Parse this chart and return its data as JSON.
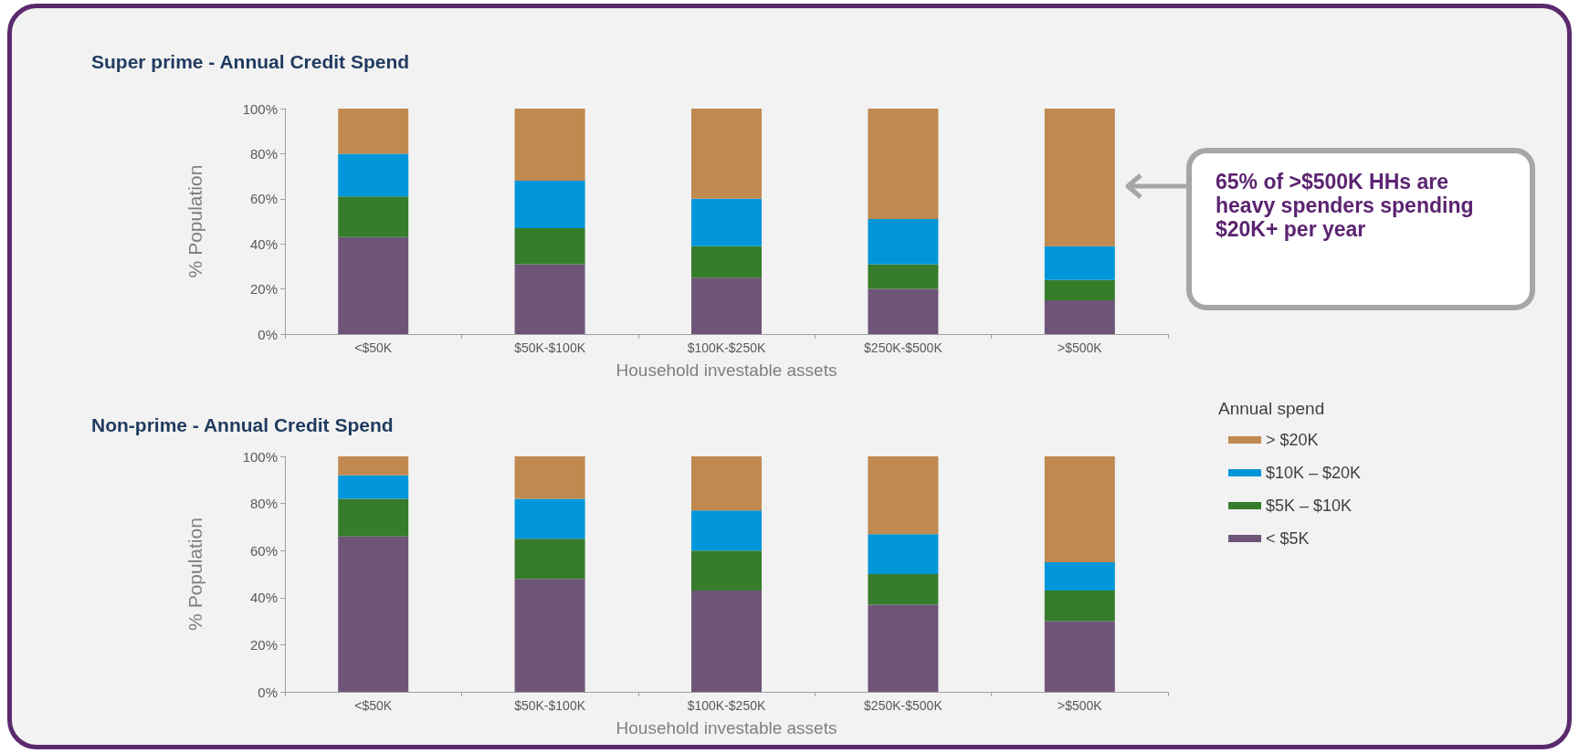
{
  "chart_data": [
    {
      "type": "bar",
      "title": "Super prime - Annual Credit Spend",
      "xlabel": "Household investable assets",
      "ylabel": "% Population",
      "stacked": true,
      "categories": [
        "<$50K",
        "$50K-$100K",
        "$100K-$250K",
        "$250K-$500K",
        ">$500K"
      ],
      "series": [
        {
          "color": "#6e5578",
          "values": [
            43,
            31,
            25,
            20,
            15
          ]
        },
        {
          "color": "#367c2b",
          "values": [
            18,
            16,
            14,
            11,
            9
          ]
        },
        {
          "color": "#0096d9",
          "values": [
            19,
            21,
            21,
            20,
            15
          ]
        },
        {
          "color": "#c0894f",
          "values": [
            20,
            32,
            40,
            49,
            61
          ]
        }
      ],
      "ylim": [
        0,
        100
      ],
      "yticks": [
        {
          "value": 0,
          "label": "0%"
        },
        {
          "value": 20,
          "label": "20%"
        },
        {
          "value": 40,
          "label": "40%"
        },
        {
          "value": 60,
          "label": "60%"
        },
        {
          "value": 80,
          "label": "80%"
        },
        {
          "value": 100,
          "label": "100%"
        }
      ],
      "grid": false,
      "annotations": [
        "65% of >$500K HHs are heavy spenders spending $20K+ per year"
      ]
    },
    {
      "type": "bar",
      "title": "Non-prime - Annual Credit Spend",
      "xlabel": "Household investable assets",
      "ylabel": "% Population",
      "stacked": true,
      "categories": [
        "<$50K",
        "$50K-$100K",
        "$100K-$250K",
        "$250K-$500K",
        ">$500K"
      ],
      "series": [
        {
          "name": "< $5K",
          "color": "#6e5578",
          "values": [
            66,
            48,
            43,
            37,
            30
          ]
        },
        {
          "name": "$5K – $10K",
          "color": "#367c2b",
          "values": [
            16,
            17,
            17,
            13,
            13
          ]
        },
        {
          "name": "$10K – $20K",
          "color": "#0096d9",
          "values": [
            10,
            17,
            17,
            17,
            12
          ]
        },
        {
          "name": "> $20K",
          "color": "#c0894f",
          "values": [
            8,
            18,
            23,
            33,
            45
          ]
        }
      ],
      "ylim": [
        0,
        100
      ],
      "yticks": [
        {
          "value": 0,
          "label": "0%"
        },
        {
          "value": 20,
          "label": "20%"
        },
        {
          "value": 40,
          "label": "40%"
        },
        {
          "value": 60,
          "label": "60%"
        },
        {
          "value": 80,
          "label": "80%"
        },
        {
          "value": 100,
          "label": "100%"
        }
      ],
      "grid": false,
      "legend": "right",
      "legend_title": "Annual spend"
    }
  ]
}
